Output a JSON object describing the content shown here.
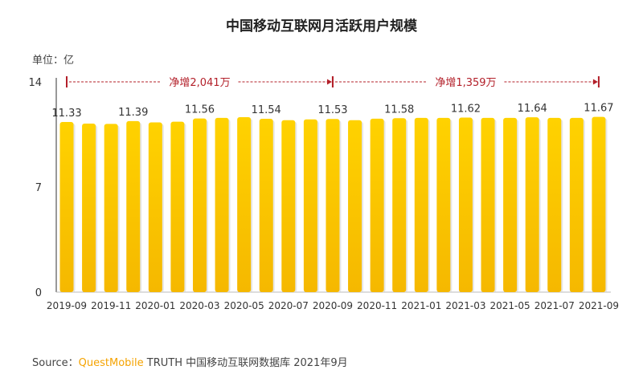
{
  "chart_data": {
    "type": "bar",
    "title": "中国移动互联网月活跃用户规模",
    "unit_label": "单位：亿",
    "categories": [
      "2019-09",
      "2019-10",
      "2019-11",
      "2019-12",
      "2020-01",
      "2020-02",
      "2020-03",
      "2020-04",
      "2020-05",
      "2020-06",
      "2020-07",
      "2020-08",
      "2020-09",
      "2020-10",
      "2020-11",
      "2020-12",
      "2021-01",
      "2021-02",
      "2021-03",
      "2021-04",
      "2021-05",
      "2021-06",
      "2021-07",
      "2021-08",
      "2021-09"
    ],
    "tick_labels": [
      "2019-09",
      "2019-11",
      "2020-01",
      "2020-03",
      "2020-05",
      "2020-07",
      "2020-09",
      "2020-11",
      "2021-01",
      "2021-03",
      "2021-05",
      "2021-07",
      "2021-09"
    ],
    "values": [
      11.33,
      11.22,
      11.2,
      11.39,
      11.3,
      11.35,
      11.56,
      11.6,
      11.65,
      11.54,
      11.45,
      11.5,
      11.53,
      11.45,
      11.55,
      11.58,
      11.6,
      11.6,
      11.62,
      11.6,
      11.6,
      11.64,
      11.6,
      11.6,
      11.67
    ],
    "data_labels": {
      "0": "11.33",
      "3": "11.39",
      "6": "11.56",
      "9": "11.54",
      "12": "11.53",
      "15": "11.58",
      "18": "11.62",
      "21": "11.64",
      "24": "11.67"
    },
    "ylim": [
      0,
      14
    ],
    "yticks": [
      "0",
      "7",
      "14"
    ],
    "annotations": [
      {
        "from": "2019-09",
        "to": "2020-09",
        "text": "净增2,041万"
      },
      {
        "from": "2020-09",
        "to": "2021-09",
        "text": "净增1,359万"
      }
    ],
    "colors": {
      "bar_top": "#ffd200",
      "bar_bottom": "#f5b800",
      "annotation": "#b3202a"
    },
    "grid": false,
    "legend": "none"
  },
  "source": {
    "prefix": "Source：",
    "brand": "QuestMobile",
    "suffix": " TRUTH 中国移动互联网数据库 2021年9月"
  }
}
